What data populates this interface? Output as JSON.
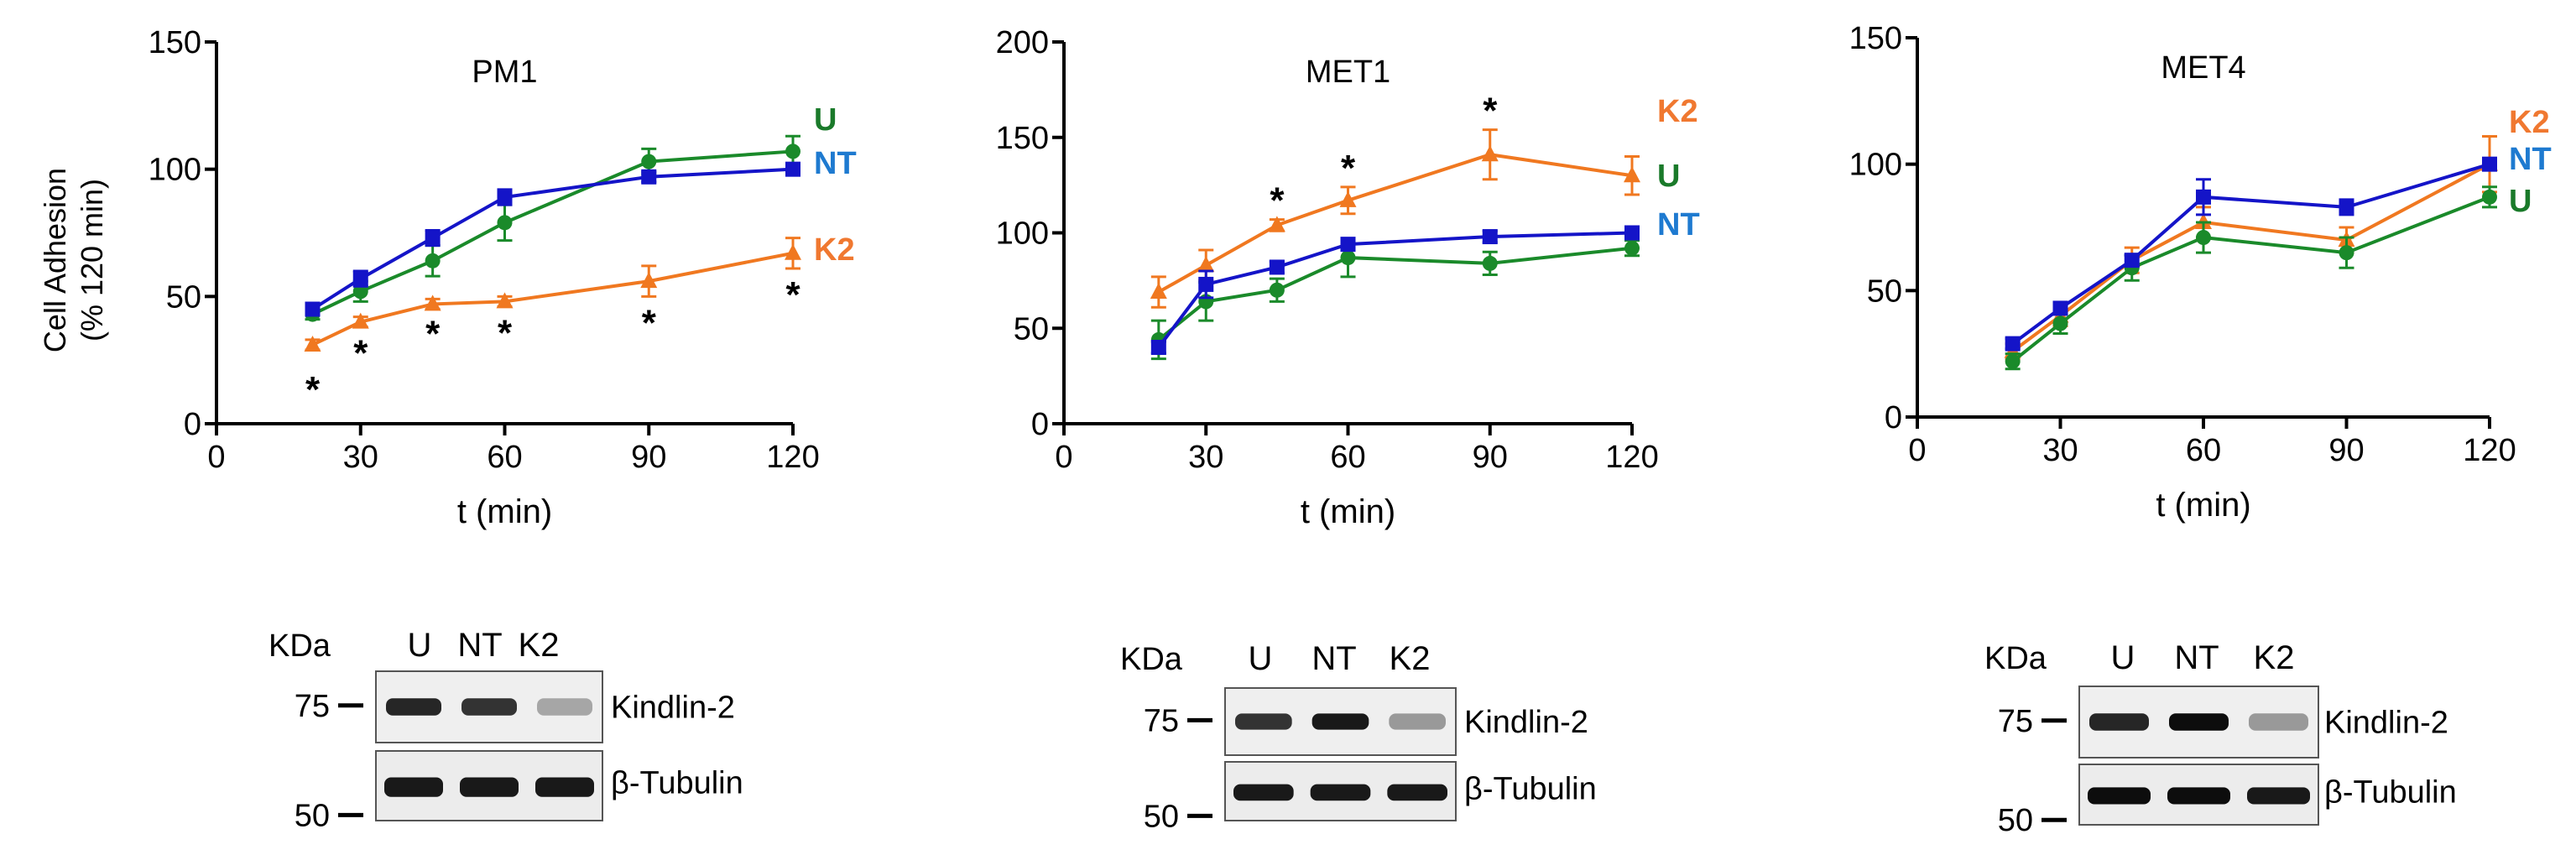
{
  "colors": {
    "U": "#1a8a2a",
    "NT": "#1414c8",
    "K2": "#f07820",
    "label_U": "#1a7a2a",
    "label_NT": "#1e7ad0",
    "label_K2": "#f07830"
  },
  "y_axis_label_line1": "Cell Adhesion",
  "y_axis_label_line2": "(% 120 min)",
  "chart_data": [
    {
      "type": "line",
      "title": "PM1",
      "xlabel": "t (min)",
      "ylabel": "Cell Adhesion (% 120 min)",
      "xlim": [
        0,
        120
      ],
      "ylim": [
        0,
        150
      ],
      "xticks": [
        0,
        30,
        60,
        90,
        120
      ],
      "yticks": [
        0,
        50,
        100,
        150
      ],
      "x": [
        20,
        30,
        45,
        60,
        90,
        120
      ],
      "series": [
        {
          "name": "U",
          "marker": "circle",
          "values": [
            43,
            52,
            64,
            79,
            103,
            107
          ],
          "errors": [
            2,
            4,
            6,
            7,
            5,
            6
          ]
        },
        {
          "name": "NT",
          "marker": "square",
          "values": [
            45,
            57,
            73,
            89,
            97,
            100
          ],
          "errors": [
            2,
            3,
            3,
            3,
            2,
            2
          ]
        },
        {
          "name": "K2",
          "marker": "triangle",
          "values": [
            31,
            40,
            47,
            48,
            56,
            67
          ],
          "errors": [
            2,
            2,
            2,
            2,
            6,
            6
          ]
        }
      ],
      "legend_order": [
        "U",
        "NT",
        "K2"
      ],
      "significance": [
        {
          "x": 20,
          "label": "*"
        },
        {
          "x": 30,
          "label": "*"
        },
        {
          "x": 45,
          "label": "*"
        },
        {
          "x": 60,
          "label": "*"
        },
        {
          "x": 90,
          "label": "*"
        },
        {
          "x": 120,
          "label": "*"
        }
      ]
    },
    {
      "type": "line",
      "title": "MET1",
      "xlabel": "t (min)",
      "xlim": [
        0,
        120
      ],
      "ylim": [
        0,
        200
      ],
      "xticks": [
        0,
        30,
        60,
        90,
        120
      ],
      "yticks": [
        0,
        50,
        100,
        150,
        200
      ],
      "x": [
        20,
        30,
        45,
        60,
        90,
        120
      ],
      "series": [
        {
          "name": "K2",
          "marker": "triangle",
          "values": [
            69,
            83,
            104,
            117,
            141,
            130
          ],
          "errors": [
            8,
            8,
            3,
            7,
            13,
            10
          ]
        },
        {
          "name": "U",
          "marker": "circle",
          "values": [
            44,
            64,
            70,
            87,
            84,
            92
          ],
          "errors": [
            10,
            10,
            6,
            10,
            6,
            4
          ]
        },
        {
          "name": "NT",
          "marker": "square",
          "values": [
            40,
            73,
            82,
            94,
            98,
            100
          ],
          "errors": [
            3,
            7,
            3,
            3,
            3,
            2
          ]
        }
      ],
      "legend_order": [
        "K2",
        "U",
        "NT"
      ],
      "significance": [
        {
          "x": 45,
          "label": "*"
        },
        {
          "x": 60,
          "label": "*"
        },
        {
          "x": 90,
          "label": "*"
        }
      ]
    },
    {
      "type": "line",
      "title": "MET4",
      "xlabel": "t (min)",
      "xlim": [
        0,
        120
      ],
      "ylim": [
        0,
        150
      ],
      "xticks": [
        0,
        30,
        60,
        90,
        120
      ],
      "yticks": [
        0,
        50,
        100,
        150
      ],
      "x": [
        20,
        30,
        45,
        60,
        90,
        120
      ],
      "series": [
        {
          "name": "K2",
          "marker": "triangle",
          "values": [
            26,
            40,
            62,
            77,
            70,
            100
          ],
          "errors": [
            3,
            4,
            5,
            6,
            5,
            11
          ]
        },
        {
          "name": "U",
          "marker": "circle",
          "values": [
            22,
            37,
            59,
            71,
            65,
            87
          ],
          "errors": [
            3,
            4,
            5,
            6,
            6,
            4
          ]
        },
        {
          "name": "NT",
          "marker": "square",
          "values": [
            29,
            43,
            62,
            87,
            83,
            100
          ],
          "errors": [
            2,
            2,
            2,
            7,
            3,
            2
          ]
        }
      ],
      "legend_order": [
        "K2",
        "NT",
        "U"
      ],
      "significance": []
    }
  ],
  "blots": [
    {
      "kda_label": "KDa",
      "lanes": [
        "U",
        "NT",
        "K2"
      ],
      "marker_top": "75",
      "marker_bottom": "50",
      "band_top": "Kindlin-2",
      "band_bottom": "β-Tubulin",
      "top_intensity": [
        0.85,
        0.8,
        0.35
      ],
      "bottom_intensity": [
        0.9,
        0.9,
        0.9
      ]
    },
    {
      "kda_label": "KDa",
      "lanes": [
        "U",
        "NT",
        "K2"
      ],
      "marker_top": "75",
      "marker_bottom": "50",
      "band_top": "Kindlin-2",
      "band_bottom": "β-Tubulin",
      "top_intensity": [
        0.8,
        0.9,
        0.4
      ],
      "bottom_intensity": [
        0.9,
        0.9,
        0.9
      ]
    },
    {
      "kda_label": "KDa",
      "lanes": [
        "U",
        "NT",
        "K2"
      ],
      "marker_top": "75",
      "marker_bottom": "50",
      "band_top": "Kindlin-2",
      "band_bottom": "β-Tubulin",
      "top_intensity": [
        0.85,
        0.95,
        0.4
      ],
      "bottom_intensity": [
        0.95,
        0.95,
        0.9
      ]
    }
  ]
}
